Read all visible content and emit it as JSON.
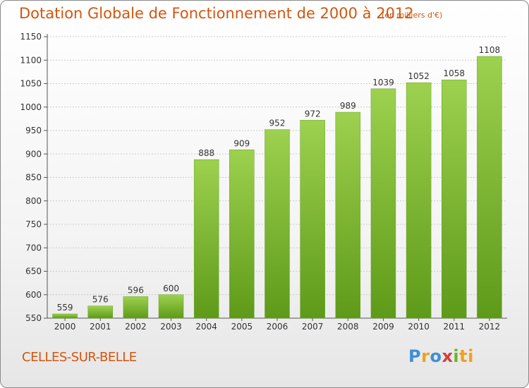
{
  "header": {
    "title": "Dotation Globale de Fonctionnement de 2000 à 2012",
    "unit_note": "(en milliers d'€)"
  },
  "footer": {
    "commune": "CELLES-SUR-BELLE",
    "brand": "Proxiti"
  },
  "colors": {
    "accent": "#d2560f",
    "bar_top": "#9dd14f",
    "bar_bottom": "#5e9a19",
    "grid": "#cccccc"
  },
  "chart_data": {
    "type": "bar",
    "title": "Dotation Globale de Fonctionnement de 2000 à 2012",
    "subtitle": "(en milliers d'€)",
    "categories": [
      "2000",
      "2001",
      "2002",
      "2003",
      "2004",
      "2005",
      "2006",
      "2007",
      "2008",
      "2009",
      "2010",
      "2011",
      "2012"
    ],
    "values": [
      559,
      576,
      596,
      600,
      888,
      909,
      952,
      972,
      989,
      1039,
      1052,
      1058,
      1108
    ],
    "ylim": [
      550,
      1150
    ],
    "yticks": [
      550,
      600,
      650,
      700,
      750,
      800,
      850,
      900,
      950,
      1000,
      1050,
      1100,
      1150
    ],
    "grid": true,
    "xlabel": "",
    "ylabel": ""
  }
}
